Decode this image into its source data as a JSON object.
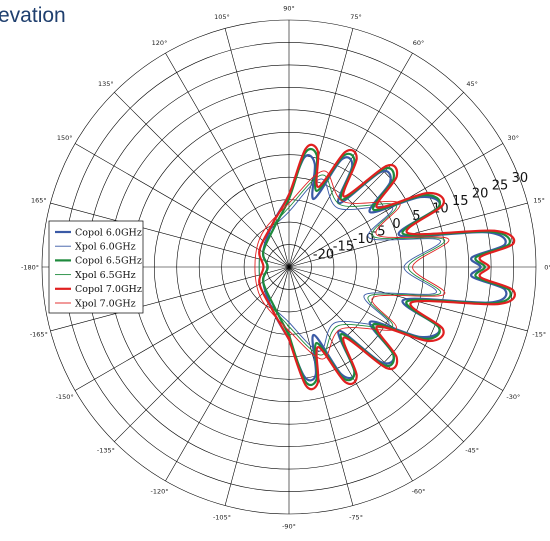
{
  "title": "evation",
  "chart_data": {
    "type": "line",
    "chart_kind": "polar",
    "angle_unit": "degrees",
    "angle_ticks": [
      0,
      15,
      30,
      45,
      60,
      75,
      90,
      105,
      120,
      135,
      150,
      165,
      180,
      -165,
      -150,
      -135,
      -120,
      -105,
      -90,
      -75,
      -60,
      -45,
      -30,
      -15
    ],
    "angle_tick_labels": [
      "0°",
      "15°",
      "30°",
      "45°",
      "60°",
      "75°",
      "90°",
      "105°",
      "120°",
      "135°",
      "150°",
      "165°",
      "-180°",
      "-165°",
      "-150°",
      "-135°",
      "-120°",
      "-105°",
      "-90°",
      "-75°",
      "-60°",
      "-45°",
      "-30°",
      "-15°"
    ],
    "radial_ticks": [
      -20,
      -15,
      -10,
      -5,
      0,
      5,
      10,
      15,
      20,
      25,
      30
    ],
    "radial_tick_labels": [
      "-20",
      "-15",
      "-10",
      "-5",
      "0",
      "5",
      "10",
      "15",
      "20",
      "25",
      "30"
    ],
    "radial_range": [
      -25,
      33
    ],
    "grid": true,
    "legend_position": "left",
    "series": [
      {
        "name": "Copol 6.0GHz",
        "color": "#3a5aa6",
        "width": 2.2,
        "points": [
          [
            -90,
            -8
          ],
          [
            -82,
            1
          ],
          [
            -76,
            1
          ],
          [
            -70,
            -8
          ],
          [
            -64,
            3
          ],
          [
            -58,
            4
          ],
          [
            -52,
            -6
          ],
          [
            -46,
            6
          ],
          [
            -40,
            7
          ],
          [
            -34,
            -2
          ],
          [
            -28,
            10
          ],
          [
            -22,
            13
          ],
          [
            -16,
            3
          ],
          [
            -10,
            23
          ],
          [
            -6,
            26
          ],
          [
            -3,
            18
          ],
          [
            0,
            20
          ],
          [
            3,
            18
          ],
          [
            6,
            26
          ],
          [
            10,
            22
          ],
          [
            16,
            2
          ],
          [
            22,
            13
          ],
          [
            28,
            10
          ],
          [
            34,
            -2
          ],
          [
            40,
            6
          ],
          [
            46,
            6
          ],
          [
            52,
            -6
          ],
          [
            58,
            3
          ],
          [
            64,
            3
          ],
          [
            70,
            -8
          ],
          [
            76,
            0
          ],
          [
            82,
            1
          ],
          [
            90,
            -8
          ],
          [
            110,
            -14
          ],
          [
            150,
            -18
          ],
          [
            180,
            -20
          ],
          [
            -150,
            -18
          ],
          [
            -110,
            -14
          ],
          [
            -90,
            -8
          ]
        ]
      },
      {
        "name": "Xpol 6.0GHz",
        "color": "#3a5aa6",
        "width": 0.9,
        "points": [
          [
            -90,
            -12
          ],
          [
            -70,
            -4
          ],
          [
            -50,
            -8
          ],
          [
            -30,
            2
          ],
          [
            -20,
            -6
          ],
          [
            -10,
            10
          ],
          [
            0,
            2
          ],
          [
            10,
            11
          ],
          [
            20,
            -5
          ],
          [
            30,
            3
          ],
          [
            50,
            -7
          ],
          [
            70,
            -3
          ],
          [
            90,
            -12
          ],
          [
            130,
            -16
          ],
          [
            180,
            -18
          ],
          [
            -130,
            -16
          ],
          [
            -90,
            -12
          ]
        ]
      },
      {
        "name": "Copol 6.5GHz",
        "color": "#1e8a3c",
        "width": 2.2,
        "points": [
          [
            -90,
            -9
          ],
          [
            -82,
            2
          ],
          [
            -76,
            2
          ],
          [
            -70,
            -6
          ],
          [
            -64,
            4
          ],
          [
            -58,
            4
          ],
          [
            -52,
            -5
          ],
          [
            -46,
            7
          ],
          [
            -40,
            7
          ],
          [
            -34,
            -1
          ],
          [
            -28,
            11
          ],
          [
            -22,
            13
          ],
          [
            -16,
            4
          ],
          [
            -10,
            24
          ],
          [
            -6,
            27
          ],
          [
            -3,
            19
          ],
          [
            0,
            21
          ],
          [
            3,
            19
          ],
          [
            6,
            27
          ],
          [
            10,
            23
          ],
          [
            16,
            3
          ],
          [
            22,
            13
          ],
          [
            28,
            11
          ],
          [
            34,
            -1
          ],
          [
            40,
            7
          ],
          [
            46,
            7
          ],
          [
            52,
            -5
          ],
          [
            58,
            4
          ],
          [
            64,
            4
          ],
          [
            70,
            -6
          ],
          [
            76,
            2
          ],
          [
            82,
            2
          ],
          [
            90,
            -9
          ],
          [
            110,
            -15
          ],
          [
            150,
            -18
          ],
          [
            180,
            -20
          ],
          [
            -150,
            -18
          ],
          [
            -110,
            -15
          ],
          [
            -90,
            -9
          ]
        ]
      },
      {
        "name": "Xpol 6.5GHz",
        "color": "#1e8a3c",
        "width": 0.9,
        "points": [
          [
            -90,
            -11
          ],
          [
            -70,
            -3
          ],
          [
            -50,
            -7
          ],
          [
            -30,
            3
          ],
          [
            -20,
            -5
          ],
          [
            -10,
            11
          ],
          [
            0,
            3
          ],
          [
            10,
            12
          ],
          [
            20,
            -4
          ],
          [
            30,
            4
          ],
          [
            50,
            -6
          ],
          [
            70,
            -2
          ],
          [
            90,
            -11
          ],
          [
            130,
            -16
          ],
          [
            180,
            -18
          ],
          [
            -130,
            -16
          ],
          [
            -90,
            -11
          ]
        ]
      },
      {
        "name": "Copol 7.0GHz",
        "color": "#e02020",
        "width": 2.2,
        "points": [
          [
            -90,
            -8
          ],
          [
            -82,
            3
          ],
          [
            -76,
            3
          ],
          [
            -70,
            -5
          ],
          [
            -64,
            5
          ],
          [
            -58,
            5
          ],
          [
            -52,
            -4
          ],
          [
            -46,
            8
          ],
          [
            -40,
            8
          ],
          [
            -34,
            0
          ],
          [
            -28,
            12
          ],
          [
            -22,
            14
          ],
          [
            -16,
            5
          ],
          [
            -10,
            25
          ],
          [
            -6,
            28
          ],
          [
            -3,
            20
          ],
          [
            0,
            22
          ],
          [
            3,
            20
          ],
          [
            6,
            28
          ],
          [
            10,
            24
          ],
          [
            16,
            4
          ],
          [
            22,
            14
          ],
          [
            28,
            12
          ],
          [
            34,
            0
          ],
          [
            40,
            8
          ],
          [
            46,
            8
          ],
          [
            52,
            -4
          ],
          [
            58,
            5
          ],
          [
            64,
            5
          ],
          [
            70,
            -5
          ],
          [
            76,
            3
          ],
          [
            82,
            3
          ],
          [
            90,
            -8
          ],
          [
            110,
            -14
          ],
          [
            150,
            -17
          ],
          [
            180,
            -19
          ],
          [
            -150,
            -17
          ],
          [
            -110,
            -14
          ],
          [
            -90,
            -8
          ]
        ]
      },
      {
        "name": "Xpol 7.0GHz",
        "color": "#e02020",
        "width": 0.9,
        "points": [
          [
            -90,
            -10
          ],
          [
            -70,
            -2
          ],
          [
            -50,
            -6
          ],
          [
            -30,
            4
          ],
          [
            -20,
            -4
          ],
          [
            -10,
            12
          ],
          [
            0,
            4
          ],
          [
            10,
            13
          ],
          [
            20,
            -3
          ],
          [
            30,
            5
          ],
          [
            50,
            -5
          ],
          [
            70,
            -1
          ],
          [
            90,
            -10
          ],
          [
            130,
            -15
          ],
          [
            180,
            -17
          ],
          [
            -130,
            -15
          ],
          [
            -90,
            -10
          ]
        ]
      }
    ]
  }
}
